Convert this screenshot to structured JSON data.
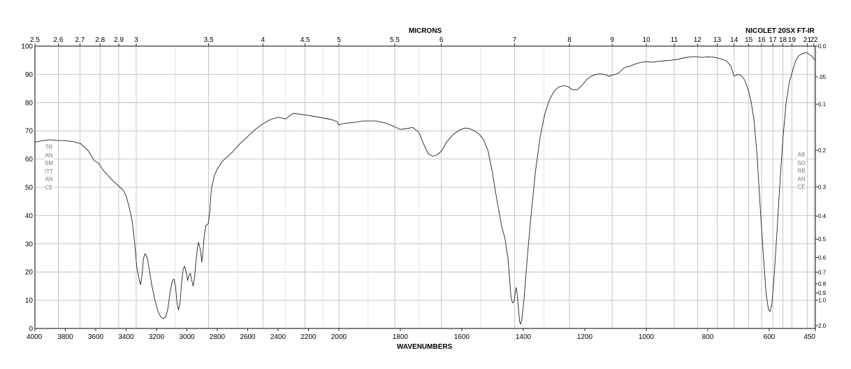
{
  "header": {
    "title_top": "MICRONS",
    "title_bottom": "WAVENUMBERS",
    "instrument": "NICOLET 20SX FT-IR"
  },
  "left_axis_label": "TRANSMITTANCE",
  "right_axis_label": "ABSORBANCE",
  "chart_data": {
    "type": "line",
    "title": "",
    "x_axis": {
      "label": "WAVENUMBERS",
      "range": [
        4000,
        450
      ],
      "ticks": [
        4000,
        3800,
        3600,
        3400,
        3200,
        3000,
        2800,
        2600,
        2400,
        2200,
        2000,
        1800,
        1600,
        1400,
        1200,
        1000,
        800,
        600,
        450
      ],
      "scale": "split linear: 2000 cm-1 per segment 4000-2000, 1000 cm-1 per segment 2000-450"
    },
    "top_axis": {
      "label": "MICRONS",
      "ticks": [
        "2.5",
        "2.6",
        "2.7",
        "2.8",
        "2.9",
        "3",
        "3.5",
        "4",
        "4.5",
        "5",
        "5.5",
        "6",
        "7",
        "8",
        "9",
        "10",
        "11",
        "12",
        "13",
        "14",
        "15",
        "16",
        "17",
        "18",
        "19",
        "21",
        "22"
      ]
    },
    "y_axis": {
      "label": "TRANSMITTANCE",
      "range": [
        0,
        100
      ],
      "ticks": [
        0,
        10,
        20,
        30,
        40,
        50,
        60,
        70,
        80,
        90,
        100
      ]
    },
    "right_axis": {
      "label": "ABSORBANCE",
      "ticks": [
        "0.0",
        ".05",
        "0.1",
        "0.2",
        "0.3",
        "0.4",
        "0.5",
        "0.6",
        "0.7",
        "0.8",
        "0.9",
        "1.0",
        "2.0"
      ]
    },
    "grid": true,
    "series": [
      {
        "points": [
          [
            4000,
            66
          ],
          [
            3950,
            66.5
          ],
          [
            3900,
            66.8
          ],
          [
            3850,
            66.6
          ],
          [
            3800,
            66.5
          ],
          [
            3750,
            66.2
          ],
          [
            3700,
            65.5
          ],
          [
            3650,
            63
          ],
          [
            3610,
            59.5
          ],
          [
            3580,
            58.5
          ],
          [
            3550,
            56
          ],
          [
            3500,
            53
          ],
          [
            3450,
            50.5
          ],
          [
            3420,
            49
          ],
          [
            3400,
            47
          ],
          [
            3380,
            43
          ],
          [
            3360,
            38
          ],
          [
            3345,
            31
          ],
          [
            3330,
            22
          ],
          [
            3315,
            17.5
          ],
          [
            3305,
            15.5
          ],
          [
            3295,
            19
          ],
          [
            3285,
            25
          ],
          [
            3275,
            26.5
          ],
          [
            3260,
            25
          ],
          [
            3245,
            20
          ],
          [
            3230,
            15
          ],
          [
            3210,
            10
          ],
          [
            3190,
            6
          ],
          [
            3170,
            4
          ],
          [
            3155,
            3.5
          ],
          [
            3140,
            4
          ],
          [
            3125,
            7
          ],
          [
            3110,
            13
          ],
          [
            3095,
            17
          ],
          [
            3085,
            17.5
          ],
          [
            3075,
            15
          ],
          [
            3065,
            9
          ],
          [
            3055,
            6.5
          ],
          [
            3045,
            9
          ],
          [
            3035,
            16
          ],
          [
            3025,
            21
          ],
          [
            3015,
            22
          ],
          [
            3005,
            20
          ],
          [
            2995,
            17
          ],
          [
            2985,
            19
          ],
          [
            2977,
            19.5
          ],
          [
            2968,
            17
          ],
          [
            2958,
            15
          ],
          [
            2950,
            18
          ],
          [
            2940,
            24
          ],
          [
            2932,
            28
          ],
          [
            2925,
            30.5
          ],
          [
            2918,
            29.5
          ],
          [
            2910,
            27.5
          ],
          [
            2902,
            23.5
          ],
          [
            2895,
            27
          ],
          [
            2885,
            33
          ],
          [
            2875,
            36.5
          ],
          [
            2860,
            37
          ],
          [
            2850,
            41
          ],
          [
            2840,
            49
          ],
          [
            2820,
            54
          ],
          [
            2800,
            56.5
          ],
          [
            2770,
            59
          ],
          [
            2730,
            61
          ],
          [
            2700,
            62.5
          ],
          [
            2650,
            65.5
          ],
          [
            2600,
            68
          ],
          [
            2550,
            70.5
          ],
          [
            2500,
            72.5
          ],
          [
            2450,
            74
          ],
          [
            2400,
            74.8
          ],
          [
            2350,
            74.2
          ],
          [
            2320,
            75.5
          ],
          [
            2300,
            76.2
          ],
          [
            2270,
            76
          ],
          [
            2220,
            75.6
          ],
          [
            2150,
            75
          ],
          [
            2100,
            74.5
          ],
          [
            2050,
            74
          ],
          [
            2010,
            73.2
          ],
          [
            2000,
            72
          ],
          [
            1990,
            72.5
          ],
          [
            1950,
            73
          ],
          [
            1920,
            73.5
          ],
          [
            1880,
            73.5
          ],
          [
            1850,
            72.8
          ],
          [
            1820,
            71.5
          ],
          [
            1800,
            70.5
          ],
          [
            1780,
            70.8
          ],
          [
            1760,
            71.2
          ],
          [
            1740,
            69.5
          ],
          [
            1725,
            65.5
          ],
          [
            1710,
            62
          ],
          [
            1695,
            61
          ],
          [
            1680,
            61.5
          ],
          [
            1665,
            63
          ],
          [
            1650,
            66
          ],
          [
            1630,
            68.5
          ],
          [
            1610,
            70.2
          ],
          [
            1590,
            71
          ],
          [
            1575,
            70.8
          ],
          [
            1560,
            70
          ],
          [
            1545,
            69
          ],
          [
            1530,
            67
          ],
          [
            1515,
            63
          ],
          [
            1500,
            55
          ],
          [
            1490,
            48
          ],
          [
            1480,
            42
          ],
          [
            1470,
            36
          ],
          [
            1460,
            32
          ],
          [
            1450,
            25
          ],
          [
            1445,
            18
          ],
          [
            1440,
            11
          ],
          [
            1435,
            9
          ],
          [
            1430,
            9.5
          ],
          [
            1426,
            13
          ],
          [
            1423,
            14.5
          ],
          [
            1420,
            12
          ],
          [
            1415,
            6
          ],
          [
            1412,
            2.5
          ],
          [
            1409,
            1.5
          ],
          [
            1405,
            3
          ],
          [
            1398,
            10
          ],
          [
            1388,
            24
          ],
          [
            1375,
            40
          ],
          [
            1360,
            56
          ],
          [
            1345,
            68
          ],
          [
            1330,
            76
          ],
          [
            1315,
            81
          ],
          [
            1300,
            84
          ],
          [
            1285,
            85.5
          ],
          [
            1270,
            86
          ],
          [
            1255,
            85.7
          ],
          [
            1240,
            84.5
          ],
          [
            1225,
            84.5
          ],
          [
            1210,
            86
          ],
          [
            1195,
            88
          ],
          [
            1180,
            89.3
          ],
          [
            1165,
            90
          ],
          [
            1150,
            90.2
          ],
          [
            1135,
            90
          ],
          [
            1120,
            89.3
          ],
          [
            1110,
            89.8
          ],
          [
            1100,
            90
          ],
          [
            1090,
            90.5
          ],
          [
            1080,
            91.5
          ],
          [
            1070,
            92.5
          ],
          [
            1055,
            92.8
          ],
          [
            1040,
            93.5
          ],
          [
            1020,
            94.2
          ],
          [
            1000,
            94.5
          ],
          [
            980,
            94.3
          ],
          [
            960,
            94.6
          ],
          [
            940,
            94.8
          ],
          [
            920,
            95
          ],
          [
            900,
            95.3
          ],
          [
            880,
            95.8
          ],
          [
            860,
            96.2
          ],
          [
            840,
            96.3
          ],
          [
            820,
            96
          ],
          [
            800,
            96.2
          ],
          [
            780,
            96.1
          ],
          [
            760,
            95.6
          ],
          [
            740,
            94.8
          ],
          [
            725,
            93
          ],
          [
            715,
            89.5
          ],
          [
            710,
            89.5
          ],
          [
            700,
            90
          ],
          [
            690,
            89.5
          ],
          [
            680,
            88
          ],
          [
            670,
            85
          ],
          [
            660,
            81
          ],
          [
            650,
            74
          ],
          [
            640,
            62
          ],
          [
            630,
            44
          ],
          [
            620,
            27
          ],
          [
            610,
            12
          ],
          [
            603,
            7
          ],
          [
            598,
            6
          ],
          [
            592,
            8
          ],
          [
            585,
            17
          ],
          [
            575,
            34
          ],
          [
            565,
            52
          ],
          [
            555,
            68
          ],
          [
            545,
            80
          ],
          [
            535,
            87
          ],
          [
            525,
            91
          ],
          [
            515,
            94.5
          ],
          [
            505,
            96.5
          ],
          [
            495,
            97.2
          ],
          [
            485,
            97.5
          ],
          [
            478,
            97.8
          ],
          [
            470,
            97
          ],
          [
            462,
            96.5
          ],
          [
            455,
            95.5
          ],
          [
            450,
            95
          ]
        ]
      }
    ]
  }
}
